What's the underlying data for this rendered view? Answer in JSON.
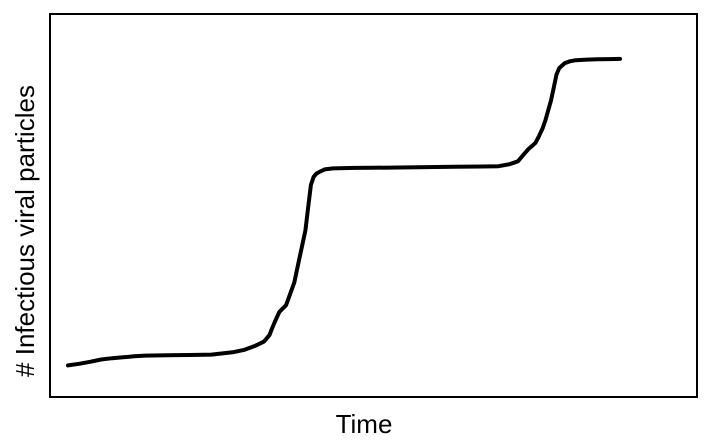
{
  "chart_data": {
    "type": "line",
    "title": "",
    "xlabel": "Time",
    "ylabel": "# Infectious viral particles",
    "grid": false,
    "legend": "none",
    "xlim": [
      0,
      100
    ],
    "ylim": [
      0,
      100
    ],
    "series": [
      {
        "color": "#000000",
        "x": [
          0,
          2,
          4,
          6,
          8,
          10,
          12,
          14,
          18,
          22,
          26,
          30,
          32,
          34,
          35.5,
          36.5,
          37,
          37.5,
          38.3,
          39.5,
          41,
          42,
          43,
          43.5,
          44,
          44.5,
          45,
          45.5,
          46.5,
          48,
          50,
          52,
          55,
          60,
          70,
          75,
          78,
          80,
          81.5,
          82.5,
          83.5,
          84.2,
          84.7,
          85.3,
          86,
          86.5,
          87,
          87.5,
          88,
          88.5,
          89,
          90,
          91,
          92,
          94,
          96,
          98,
          100
        ],
        "y": [
          0.5,
          1,
          1.6,
          2.3,
          2.7,
          3.0,
          3.3,
          3.5,
          3.6,
          3.7,
          3.8,
          4.6,
          5.3,
          6.6,
          7.8,
          9.8,
          12,
          14,
          17,
          19,
          26,
          34,
          42,
          49,
          56,
          58.5,
          59.5,
          60,
          60.8,
          61.1,
          61.2,
          61.25,
          61.3,
          61.4,
          61.6,
          61.7,
          61.8,
          62.4,
          63.3,
          65.3,
          67.2,
          68.2,
          69,
          71,
          73.5,
          76,
          79,
          82,
          86,
          90,
          92,
          93.5,
          94.1,
          94.4,
          94.6,
          94.7,
          94.75,
          94.8
        ]
      }
    ]
  }
}
